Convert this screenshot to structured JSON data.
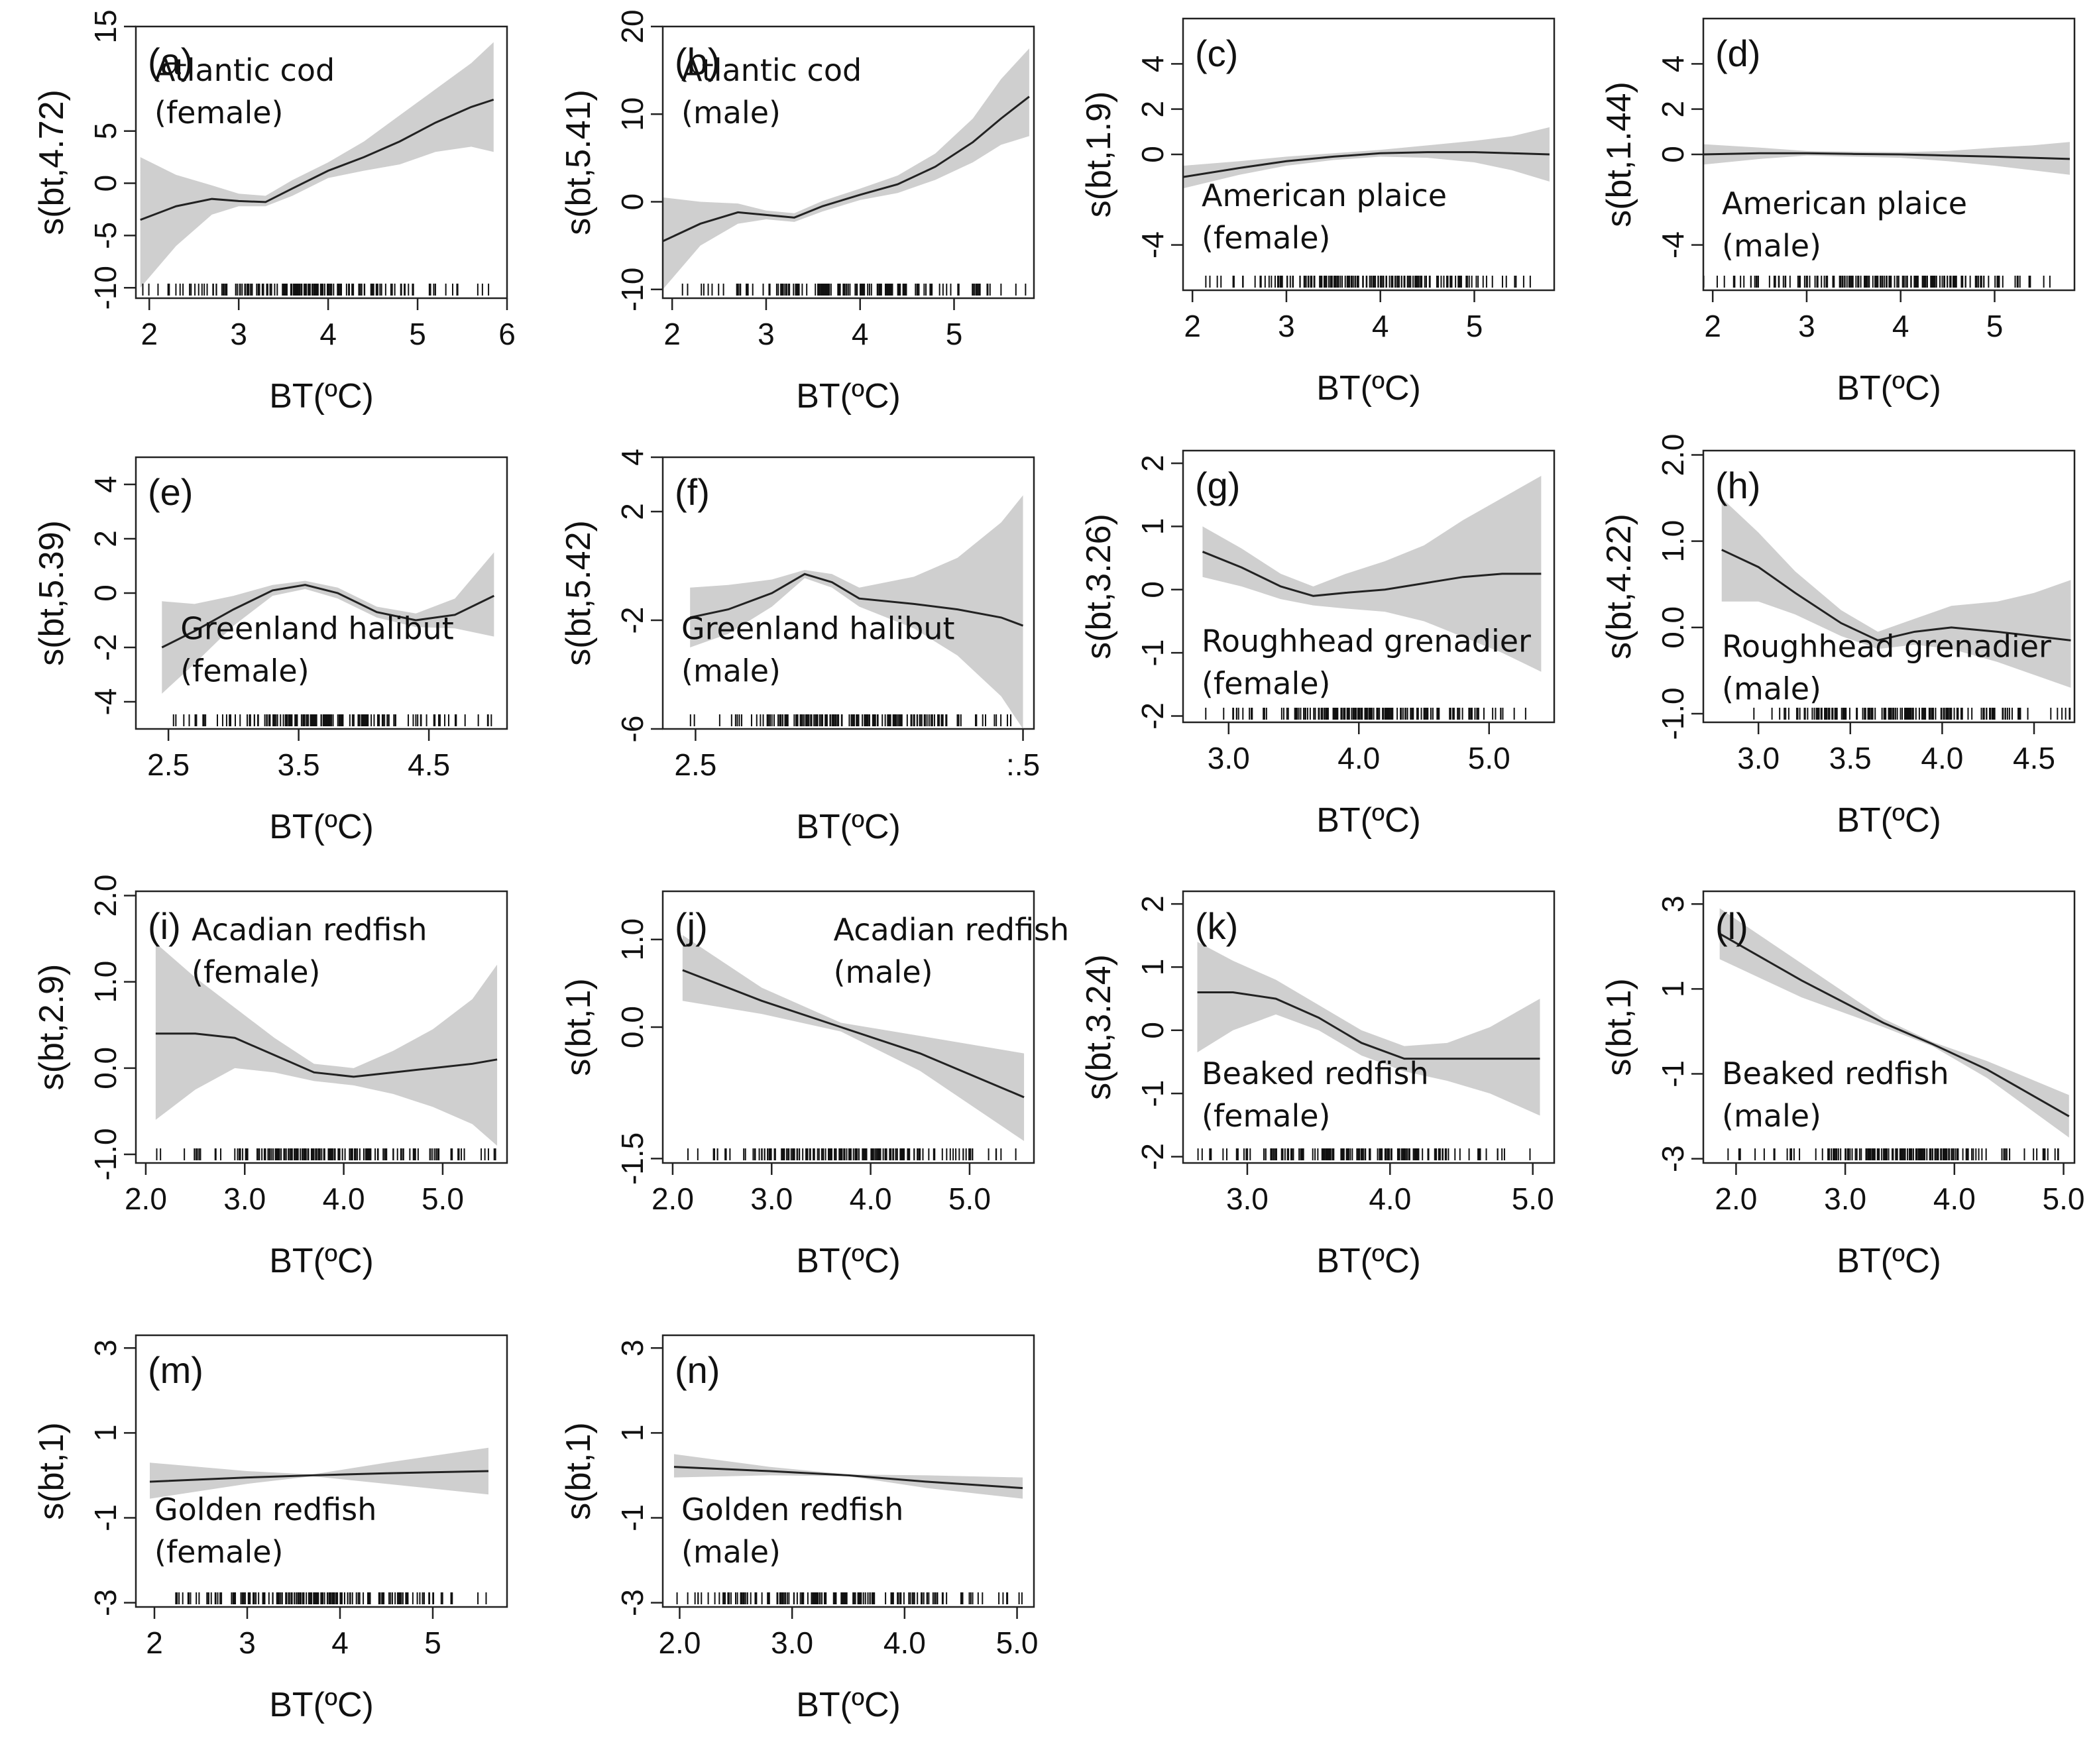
{
  "figure": {
    "x_label": "BT(ºC)"
  },
  "chart_data": [
    {
      "id": "a",
      "type": "line",
      "letter": "(a)",
      "species": [
        "Atlantic cod",
        "(female)"
      ],
      "ylabel": "s(bt,4.72)",
      "xlabel": "BT(ºC)",
      "xlim": [
        1.85,
        6.0
      ],
      "ylim": [
        -11,
        15
      ],
      "xticks": [
        "2",
        "3",
        "4",
        "5",
        "6"
      ],
      "yticks": [
        "-10",
        "-5",
        "0",
        "5",
        "15"
      ],
      "x": [
        1.9,
        2.3,
        2.7,
        3.0,
        3.3,
        3.6,
        4.0,
        4.4,
        4.8,
        5.2,
        5.6,
        5.85
      ],
      "fit": [
        -3.5,
        -2.2,
        -1.5,
        -1.7,
        -1.8,
        -0.5,
        1.2,
        2.5,
        4.0,
        5.8,
        7.3,
        8.0
      ],
      "lower": [
        -10.0,
        -6.0,
        -3.0,
        -2.2,
        -2.2,
        -1.2,
        0.5,
        1.2,
        1.8,
        3.0,
        3.5,
        3.0
      ],
      "upper": [
        2.5,
        0.8,
        -0.2,
        -1.0,
        -1.2,
        0.3,
        2.0,
        4.0,
        6.5,
        9.0,
        11.5,
        13.5
      ]
    },
    {
      "id": "b",
      "type": "line",
      "letter": "(b)",
      "species": [
        "Atlantic cod",
        "(male)"
      ],
      "ylabel": "s(bt,5.41)",
      "xlabel": "BT(ºC)",
      "xlim": [
        1.9,
        5.85
      ],
      "ylim": [
        -11,
        20
      ],
      "xticks": [
        "2",
        "3",
        "4",
        "5"
      ],
      "yticks": [
        "-10",
        "0",
        "10",
        "20"
      ],
      "x": [
        1.9,
        2.3,
        2.7,
        3.0,
        3.3,
        3.6,
        4.0,
        4.4,
        4.8,
        5.2,
        5.5,
        5.8
      ],
      "fit": [
        -4.5,
        -2.5,
        -1.2,
        -1.5,
        -1.8,
        -0.5,
        0.8,
        2.0,
        4.0,
        6.8,
        9.5,
        12.0
      ],
      "lower": [
        -10.0,
        -5.0,
        -2.5,
        -2.0,
        -2.3,
        -1.1,
        0.2,
        1.0,
        2.5,
        4.5,
        6.5,
        7.5
      ],
      "upper": [
        0.5,
        0.0,
        -0.2,
        -1.0,
        -1.3,
        0.1,
        1.5,
        3.0,
        5.5,
        9.5,
        14.0,
        17.5
      ]
    },
    {
      "id": "c",
      "type": "line",
      "letter": "(c)",
      "species": [
        "American plaice",
        "(female)"
      ],
      "ylabel": "s(bt,1.9)",
      "xlabel": "BT(ºC)",
      "xlim": [
        1.9,
        5.85
      ],
      "ylim": [
        -6,
        6
      ],
      "xticks": [
        "2",
        "3",
        "4",
        "5"
      ],
      "yticks": [
        "-4",
        "0",
        "2",
        "4"
      ],
      "x": [
        1.9,
        2.5,
        3.0,
        3.5,
        4.0,
        4.5,
        5.0,
        5.4,
        5.8
      ],
      "fit": [
        -1.0,
        -0.6,
        -0.3,
        -0.1,
        0.05,
        0.1,
        0.1,
        0.05,
        0.0
      ],
      "lower": [
        -1.5,
        -0.9,
        -0.5,
        -0.25,
        -0.1,
        -0.15,
        -0.35,
        -0.7,
        -1.2
      ],
      "upper": [
        -0.5,
        -0.3,
        -0.1,
        0.05,
        0.2,
        0.4,
        0.6,
        0.8,
        1.2
      ]
    },
    {
      "id": "d",
      "type": "line",
      "letter": "(d)",
      "species": [
        "American plaice",
        "(male)"
      ],
      "ylabel": "s(bt,1.44)",
      "xlabel": "BT(ºC)",
      "xlim": [
        1.9,
        5.85
      ],
      "ylim": [
        -6,
        6
      ],
      "xticks": [
        "2",
        "3",
        "4",
        "5"
      ],
      "yticks": [
        "-4",
        "0",
        "2",
        "4"
      ],
      "x": [
        1.9,
        2.5,
        3.0,
        3.5,
        4.0,
        4.5,
        5.0,
        5.4,
        5.8
      ],
      "fit": [
        0.0,
        0.05,
        0.05,
        0.02,
        0.0,
        -0.05,
        -0.1,
        -0.15,
        -0.2
      ],
      "lower": [
        -0.45,
        -0.2,
        -0.05,
        -0.1,
        -0.15,
        -0.3,
        -0.5,
        -0.7,
        -0.9
      ],
      "upper": [
        0.45,
        0.3,
        0.15,
        0.12,
        0.1,
        0.15,
        0.3,
        0.4,
        0.55
      ]
    },
    {
      "id": "e",
      "type": "line",
      "letter": "(e)",
      "species": [
        "Greenland halibut",
        "(female)"
      ],
      "ylabel": "s(bt,5.39)",
      "xlabel": "BT(ºC)",
      "xlim": [
        2.25,
        5.1
      ],
      "ylim": [
        -5,
        5
      ],
      "xticks": [
        "2.5",
        "3.5",
        "4.5"
      ],
      "yticks": [
        "-4",
        "-2",
        "0",
        "2",
        "4"
      ],
      "x": [
        2.45,
        2.7,
        3.0,
        3.3,
        3.55,
        3.8,
        4.1,
        4.4,
        4.7,
        5.0
      ],
      "fit": [
        -2.0,
        -1.4,
        -0.6,
        0.1,
        0.3,
        0.0,
        -0.7,
        -1.0,
        -0.8,
        -0.1
      ],
      "lower": [
        -3.7,
        -2.6,
        -1.2,
        -0.1,
        0.15,
        -0.2,
        -0.9,
        -1.25,
        -1.3,
        -1.6
      ],
      "upper": [
        -0.3,
        -0.4,
        -0.1,
        0.3,
        0.45,
        0.2,
        -0.5,
        -0.75,
        -0.2,
        1.5
      ]
    },
    {
      "id": "f",
      "type": "line",
      "letter": "(f)",
      "species": [
        "Greenland halibut",
        "(male)"
      ],
      "ylabel": "s(bt,5.42)",
      "xlabel": "BT(ºC)",
      "xlim": [
        2.2,
        5.6
      ],
      "ylim": [
        -6,
        4
      ],
      "xticks": [
        "2.5",
        ":.5"
      ],
      "xtick_vals": [
        2.5,
        5.5
      ],
      "yticks": [
        "-6",
        "-2",
        "2",
        "4"
      ],
      "x": [
        2.45,
        2.8,
        3.2,
        3.5,
        3.75,
        4.0,
        4.5,
        4.9,
        5.3,
        5.5
      ],
      "fit": [
        -1.9,
        -1.6,
        -1.0,
        -0.3,
        -0.6,
        -1.2,
        -1.4,
        -1.6,
        -1.9,
        -2.2
      ],
      "lower": [
        -3.0,
        -2.5,
        -1.5,
        -0.45,
        -0.8,
        -1.5,
        -2.3,
        -3.3,
        -4.8,
        -6.0
      ],
      "upper": [
        -0.8,
        -0.7,
        -0.5,
        -0.15,
        -0.3,
        -0.8,
        -0.4,
        0.3,
        1.6,
        2.6
      ]
    },
    {
      "id": "g",
      "type": "line",
      "letter": "(g)",
      "species": [
        "Roughhead grenadier",
        "(female)"
      ],
      "ylabel": "s(bt,3.26)",
      "xlabel": "BT(ºC)",
      "xlim": [
        2.65,
        5.5
      ],
      "ylim": [
        -2.1,
        2.2
      ],
      "xticks": [
        "3.0",
        "4.0",
        "5.0"
      ],
      "yticks": [
        "-2",
        "-1",
        "0",
        "1",
        "2"
      ],
      "x": [
        2.8,
        3.1,
        3.4,
        3.65,
        3.9,
        4.2,
        4.5,
        4.8,
        5.1,
        5.4
      ],
      "fit": [
        0.6,
        0.35,
        0.05,
        -0.1,
        -0.05,
        0.0,
        0.1,
        0.2,
        0.25,
        0.25
      ],
      "lower": [
        0.2,
        0.05,
        -0.15,
        -0.25,
        -0.3,
        -0.35,
        -0.5,
        -0.75,
        -1.0,
        -1.3
      ],
      "upper": [
        1.0,
        0.65,
        0.25,
        0.05,
        0.25,
        0.45,
        0.7,
        1.1,
        1.45,
        1.8
      ]
    },
    {
      "id": "h",
      "type": "line",
      "letter": "(h)",
      "species": [
        "Roughhead grenadier",
        "(male)"
      ],
      "ylabel": "s(bt,4.22)",
      "xlabel": "BT(ºC)",
      "xlim": [
        2.7,
        4.72
      ],
      "ylim": [
        -1.1,
        2.05
      ],
      "xticks": [
        "3.0",
        "3.5",
        "4.0",
        "4.5"
      ],
      "yticks": [
        "-1.0",
        "0.0",
        "1.0",
        "2.0"
      ],
      "x": [
        2.8,
        3.0,
        3.2,
        3.45,
        3.65,
        3.85,
        4.05,
        4.3,
        4.5,
        4.7
      ],
      "fit": [
        0.9,
        0.7,
        0.4,
        0.05,
        -0.15,
        -0.05,
        0.0,
        -0.05,
        -0.1,
        -0.15
      ],
      "lower": [
        0.3,
        0.3,
        0.15,
        -0.1,
        -0.25,
        -0.2,
        -0.25,
        -0.4,
        -0.55,
        -0.7
      ],
      "upper": [
        1.5,
        1.1,
        0.65,
        0.2,
        -0.05,
        0.1,
        0.25,
        0.3,
        0.4,
        0.55
      ]
    },
    {
      "id": "i",
      "type": "line",
      "letter": "(i)",
      "species": [
        "Acadian redfish",
        "(female)"
      ],
      "ylabel": "s(bt,2.9)",
      "xlabel": "BT(ºC)",
      "xlim": [
        1.9,
        5.65
      ],
      "ylim": [
        -1.1,
        2.05
      ],
      "xticks": [
        "2.0",
        "3.0",
        "4.0",
        "5.0"
      ],
      "yticks": [
        "-1.0",
        "0.0",
        "1.0",
        "2.0"
      ],
      "x": [
        2.1,
        2.5,
        2.9,
        3.3,
        3.7,
        4.1,
        4.5,
        4.9,
        5.3,
        5.55
      ],
      "fit": [
        0.4,
        0.4,
        0.35,
        0.15,
        -0.05,
        -0.1,
        -0.05,
        0.0,
        0.05,
        0.1
      ],
      "lower": [
        -0.6,
        -0.25,
        0.0,
        -0.05,
        -0.15,
        -0.2,
        -0.3,
        -0.45,
        -0.65,
        -0.9
      ],
      "upper": [
        1.45,
        1.05,
        0.7,
        0.35,
        0.05,
        0.0,
        0.2,
        0.45,
        0.8,
        1.2
      ]
    },
    {
      "id": "j",
      "type": "line",
      "letter": "(j)",
      "species": [
        "Acadian redfish",
        "(male)"
      ],
      "ylabel": "s(bt,1)",
      "xlabel": "BT(ºC)",
      "xlim": [
        1.9,
        5.65
      ],
      "ylim": [
        -1.55,
        1.55
      ],
      "xticks": [
        "2.0",
        "3.0",
        "4.0",
        "5.0"
      ],
      "yticks": [
        "-1.5",
        "0.0",
        "1.0"
      ],
      "x": [
        2.1,
        2.9,
        3.7,
        4.5,
        5.55
      ],
      "fit": [
        0.65,
        0.3,
        0.0,
        -0.3,
        -0.8
      ],
      "lower": [
        0.3,
        0.15,
        -0.05,
        -0.5,
        -1.3
      ],
      "upper": [
        1.05,
        0.45,
        0.05,
        -0.1,
        -0.3
      ]
    },
    {
      "id": "k",
      "type": "line",
      "letter": "(k)",
      "species": [
        "Beaked redfish",
        "(female)"
      ],
      "ylabel": "s(bt,3.24)",
      "xlabel": "BT(ºC)",
      "xlim": [
        2.55,
        5.15
      ],
      "ylim": [
        -2.1,
        2.2
      ],
      "xticks": [
        "3.0",
        "4.0",
        "5.0"
      ],
      "yticks": [
        "-2",
        "-1",
        "0",
        "1",
        "2"
      ],
      "x": [
        2.65,
        2.9,
        3.2,
        3.5,
        3.8,
        4.1,
        4.4,
        4.7,
        5.05
      ],
      "fit": [
        0.6,
        0.6,
        0.5,
        0.2,
        -0.2,
        -0.45,
        -0.45,
        -0.45,
        -0.45
      ],
      "lower": [
        -0.35,
        0.0,
        0.25,
        0.0,
        -0.4,
        -0.65,
        -0.8,
        -1.0,
        -1.35
      ],
      "upper": [
        1.4,
        1.1,
        0.8,
        0.4,
        0.0,
        -0.25,
        -0.2,
        0.05,
        0.5
      ]
    },
    {
      "id": "l",
      "type": "line",
      "letter": "(l)",
      "species": [
        "Beaked redfish",
        "(male)"
      ],
      "ylabel": "s(bt,1)",
      "xlabel": "BT(ºC)",
      "xlim": [
        1.7,
        5.1
      ],
      "ylim": [
        -3.1,
        3.3
      ],
      "xticks": [
        "2.0",
        "3.0",
        "4.0",
        "5.0"
      ],
      "yticks": [
        "-3",
        "-1",
        "1",
        "3"
      ],
      "x": [
        1.85,
        2.6,
        3.35,
        3.8,
        4.3,
        5.05
      ],
      "fit": [
        2.3,
        1.2,
        0.2,
        -0.3,
        -0.9,
        -2.0
      ],
      "lower": [
        1.7,
        0.8,
        0.1,
        -0.35,
        -1.1,
        -2.5
      ],
      "upper": [
        2.9,
        1.6,
        0.3,
        -0.25,
        -0.7,
        -1.5
      ]
    },
    {
      "id": "m",
      "type": "line",
      "letter": "(m)",
      "species": [
        "Golden redfish",
        "(female)"
      ],
      "ylabel": "s(bt,1)",
      "xlabel": "BT(ºC)",
      "xlim": [
        1.8,
        5.8
      ],
      "ylim": [
        -3.1,
        3.3
      ],
      "xticks": [
        "2",
        "3",
        "4",
        "5"
      ],
      "yticks": [
        "-3",
        "-1",
        "1",
        "3"
      ],
      "x": [
        1.95,
        3.0,
        3.7,
        4.5,
        5.6
      ],
      "fit": [
        -0.15,
        -0.05,
        0.0,
        0.05,
        0.1
      ],
      "lower": [
        -0.55,
        -0.2,
        -0.02,
        -0.2,
        -0.45
      ],
      "upper": [
        0.3,
        0.1,
        0.02,
        0.3,
        0.65
      ]
    },
    {
      "id": "n",
      "type": "line",
      "letter": "(n)",
      "species": [
        "Golden redfish",
        "(male)"
      ],
      "ylabel": "s(bt,1)",
      "xlabel": "BT(ºC)",
      "xlim": [
        1.85,
        5.15
      ],
      "ylim": [
        -3.1,
        3.3
      ],
      "xticks": [
        "2.0",
        "3.0",
        "4.0",
        "5.0"
      ],
      "yticks": [
        "-3",
        "-1",
        "1",
        "3"
      ],
      "x": [
        1.95,
        2.8,
        3.5,
        4.2,
        5.05
      ],
      "fit": [
        0.2,
        0.1,
        0.0,
        -0.15,
        -0.3
      ],
      "lower": [
        -0.05,
        0.0,
        -0.02,
        -0.3,
        -0.55
      ],
      "upper": [
        0.5,
        0.2,
        0.02,
        0.0,
        -0.05
      ]
    }
  ]
}
